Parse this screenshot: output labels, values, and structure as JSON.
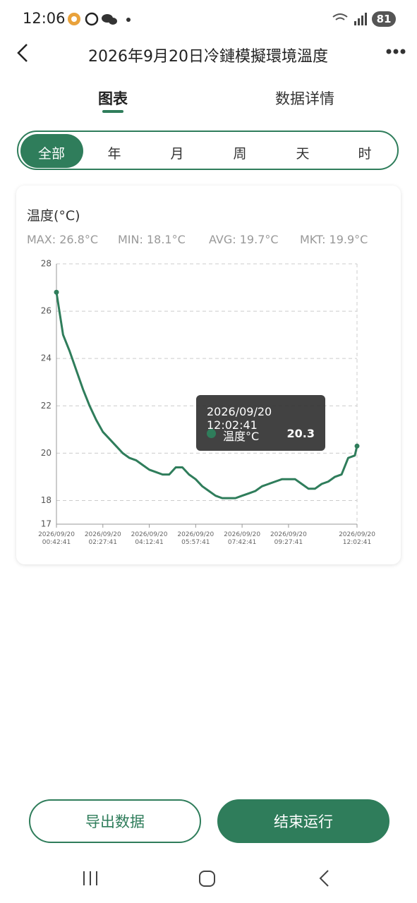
{
  "status_bar": {
    "time": "12:06",
    "battery": "81"
  },
  "header": {
    "title": "2026年9月20日冷鏈模擬環境溫度"
  },
  "tabs": [
    "图表",
    "数据详情"
  ],
  "ranges": [
    "全部",
    "年",
    "月",
    "周",
    "天",
    "时"
  ],
  "chart_data": {
    "type": "line",
    "title": "温度(°C)",
    "stats": [
      "MAX: 26.8°C",
      "MIN: 18.1°C",
      "AVG: 19.7°C",
      "MKT: 19.9°C"
    ],
    "x": [
      "2026/09/20 00:42:41",
      "2026/09/20 00:57:41",
      "2026/09/20 01:12:41",
      "2026/09/20 01:27:41",
      "2026/09/20 01:42:41",
      "2026/09/20 01:57:41",
      "2026/09/20 02:12:41",
      "2026/09/20 02:27:41",
      "2026/09/20 02:42:41",
      "2026/09/20 02:57:41",
      "2026/09/20 03:12:41",
      "2026/09/20 03:27:41",
      "2026/09/20 03:42:41",
      "2026/09/20 03:57:41",
      "2026/09/20 04:12:41",
      "2026/09/20 04:27:41",
      "2026/09/20 04:42:41",
      "2026/09/20 04:57:41",
      "2026/09/20 05:12:41",
      "2026/09/20 05:27:41",
      "2026/09/20 05:42:41",
      "2026/09/20 05:57:41",
      "2026/09/20 06:12:41",
      "2026/09/20 06:27:41",
      "2026/09/20 06:42:41",
      "2026/09/20 06:57:41",
      "2026/09/20 07:12:41",
      "2026/09/20 07:27:41",
      "2026/09/20 07:42:41",
      "2026/09/20 07:57:41",
      "2026/09/20 08:12:41",
      "2026/09/20 08:27:41",
      "2026/09/20 08:42:41",
      "2026/09/20 08:57:41",
      "2026/09/20 09:12:41",
      "2026/09/20 09:27:41",
      "2026/09/20 09:42:41",
      "2026/09/20 09:57:41",
      "2026/09/20 10:12:41",
      "2026/09/20 10:27:41",
      "2026/09/20 10:42:41",
      "2026/09/20 10:57:41",
      "2026/09/20 11:12:41",
      "2026/09/20 11:27:41",
      "2026/09/20 11:42:41",
      "2026/09/20 11:57:41",
      "2026/09/20 12:02:41"
    ],
    "series": [
      {
        "name": "温度°C",
        "color": "#2f7d5b",
        "values": [
          26.8,
          25.0,
          24.3,
          23.5,
          22.7,
          22.0,
          21.4,
          20.9,
          20.6,
          20.3,
          20.0,
          19.8,
          19.7,
          19.5,
          19.3,
          19.2,
          19.1,
          19.1,
          19.4,
          19.4,
          19.1,
          18.9,
          18.6,
          18.4,
          18.2,
          18.1,
          18.1,
          18.1,
          18.2,
          18.3,
          18.4,
          18.6,
          18.7,
          18.8,
          18.9,
          18.9,
          18.9,
          18.7,
          18.5,
          18.5,
          18.7,
          18.8,
          19.0,
          19.1,
          19.8,
          19.9,
          20.3
        ]
      }
    ],
    "xlim": [
      "2026/09/20 00:42:41",
      "2026/09/20 12:02:41"
    ],
    "xticks": [
      "2026/09/20 00:42:41",
      "2026/09/20 02:27:41",
      "2026/09/20 04:12:41",
      "2026/09/20 05:57:41",
      "2026/09/20 07:42:41",
      "2026/09/20 09:27:41",
      "2026/09/20 12:02:41"
    ],
    "ylim": [
      17,
      28
    ],
    "yticks": [
      17,
      18,
      20,
      22,
      24,
      26,
      28
    ],
    "grid": true
  },
  "tooltip": {
    "time": "2026/09/20 12:02:41"
  },
  "buttons": [
    "导出数据",
    "结束运行"
  ]
}
